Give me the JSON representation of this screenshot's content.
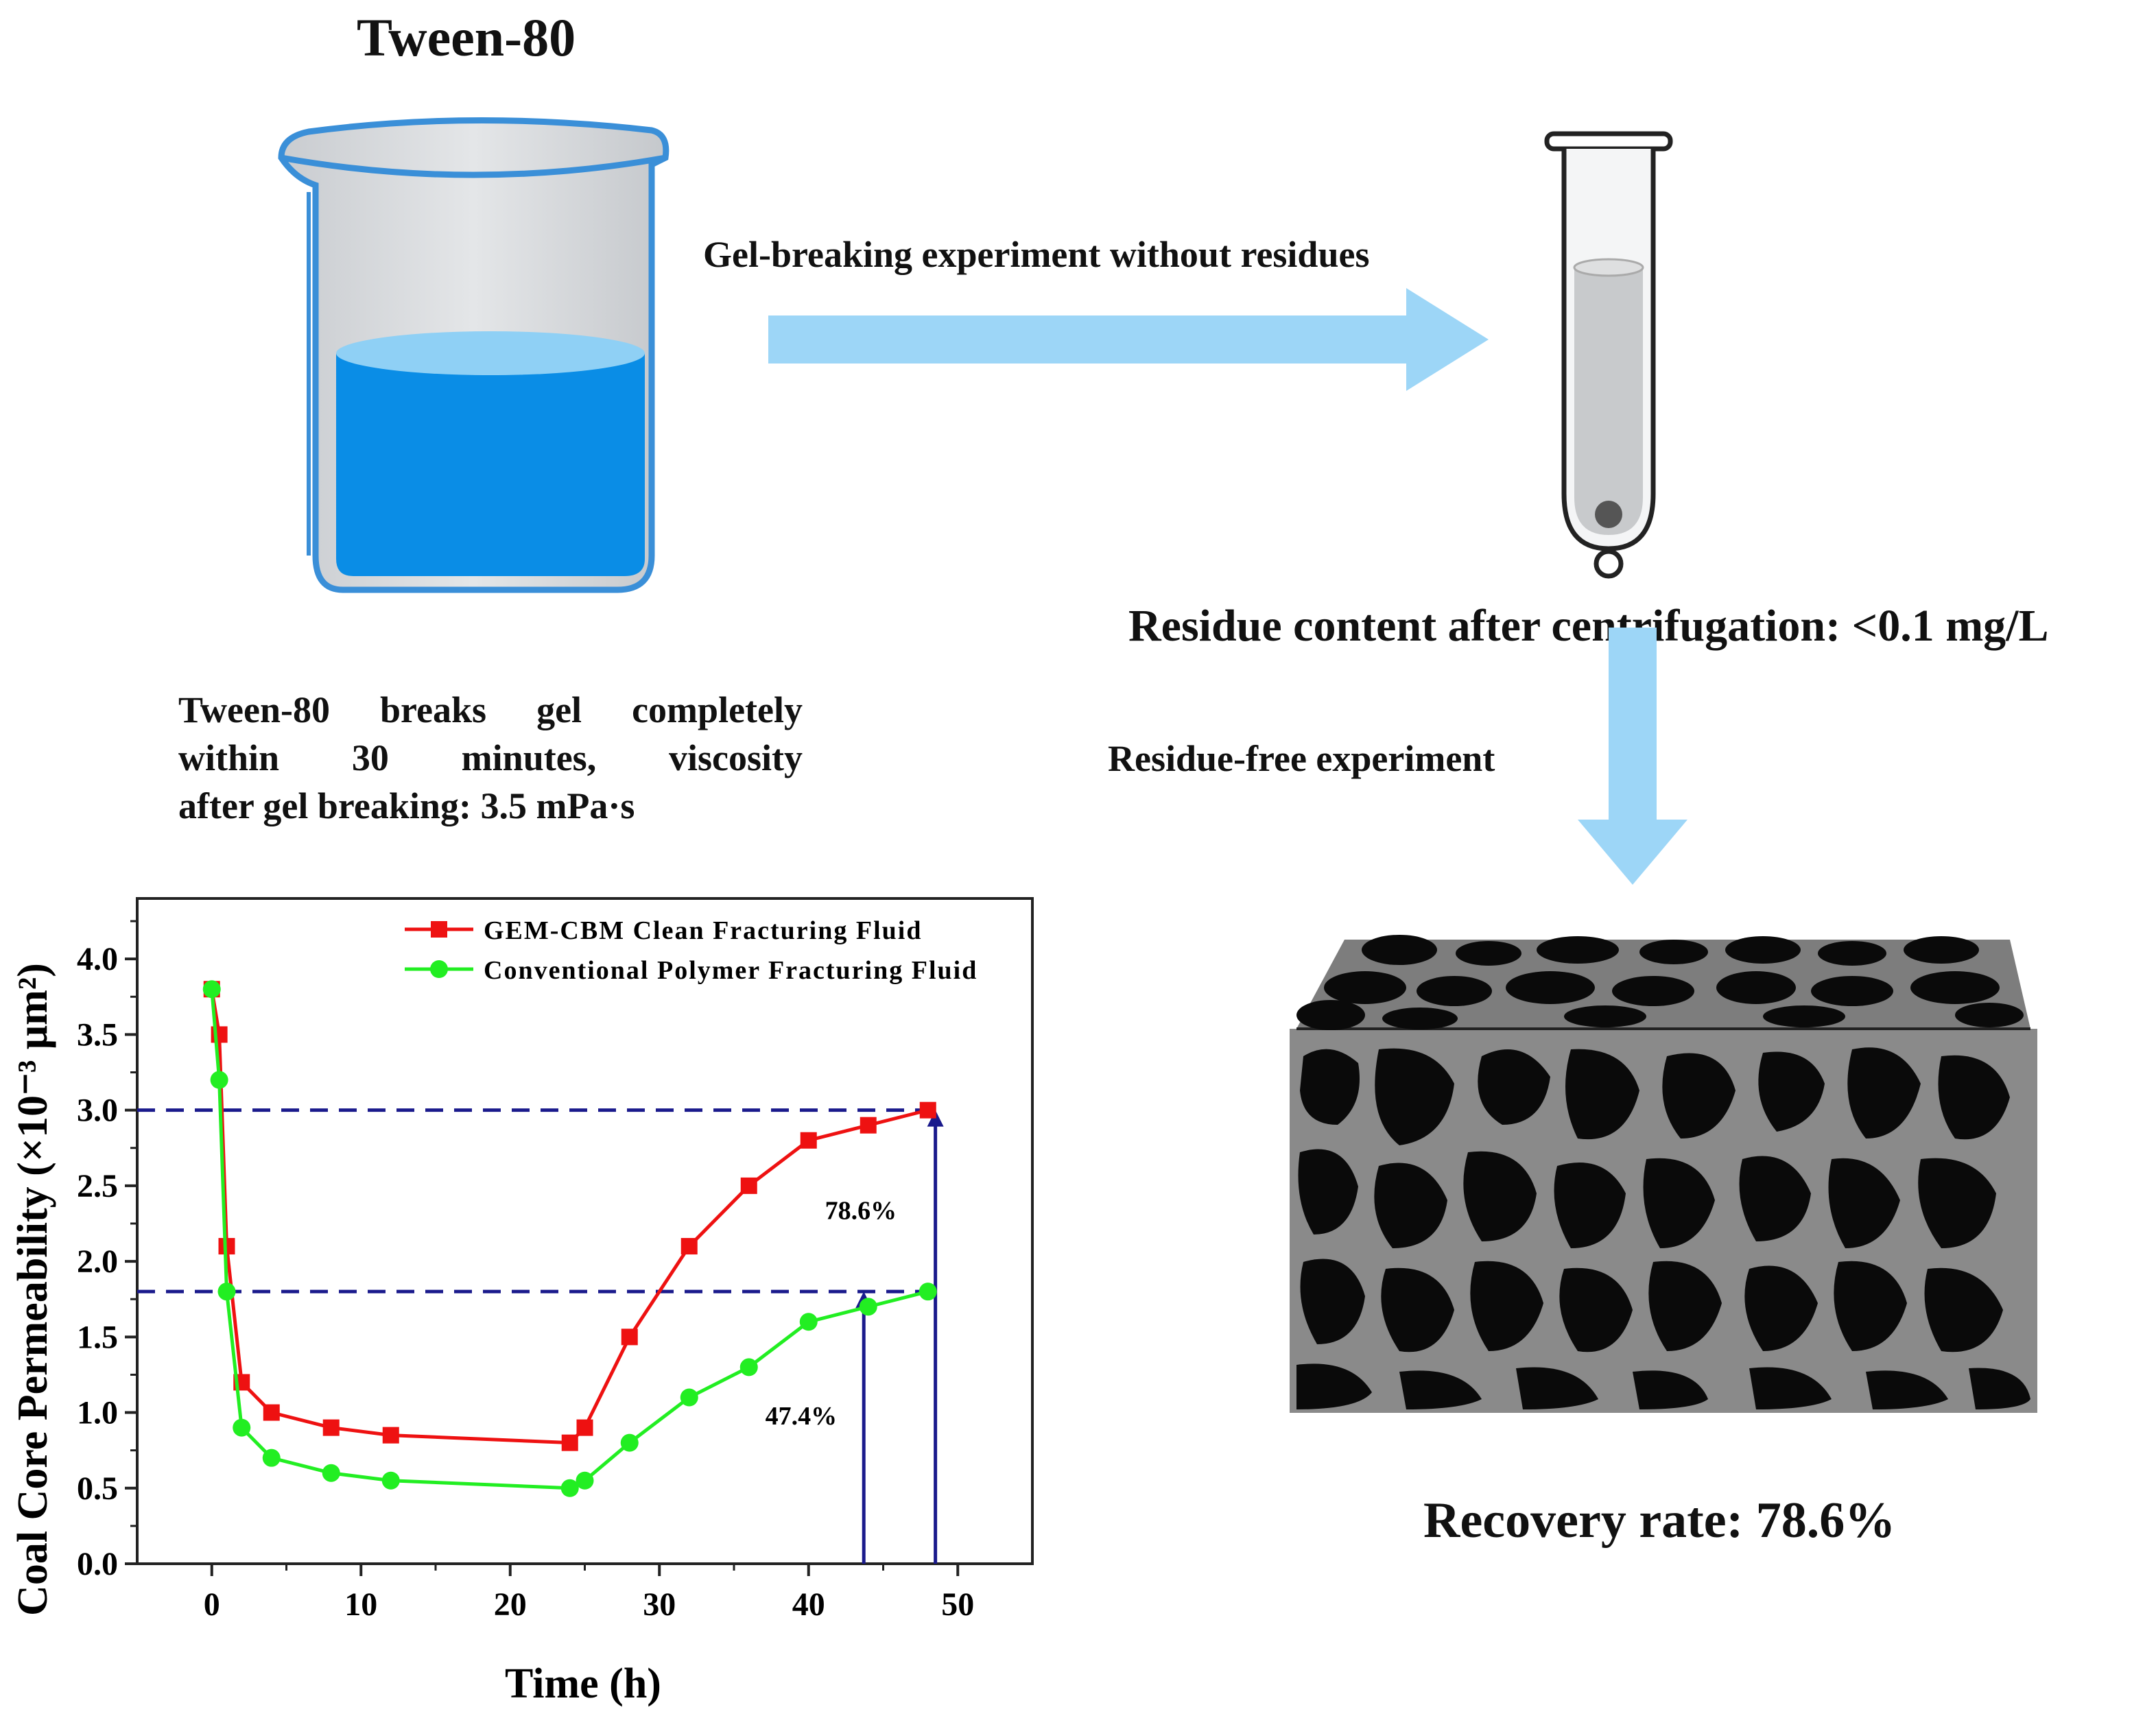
{
  "diagram": {
    "title": "Tween-80",
    "arrow_right_label": "Gel-breaking experiment without residues",
    "residue_text": "Residue content after centrifugation: <0.1 mg/L",
    "arrow_down_label": "Residue-free experiment",
    "tween_desc_lines": [
      "Tween-80 breaks gel completely",
      "within 30 minutes, viscosity",
      "after gel breaking: 3.5 mPa·s"
    ],
    "recovery_text": "Recovery rate: 78.6%",
    "colors": {
      "arrow": "#9dd6f7",
      "beaker_outline": "#3a8fd8",
      "beaker_liquid": "#0a8de6",
      "beaker_liquid_top": "#8fd0f5",
      "coal_dark": "#0a0a0a",
      "coal_matrix": "#8a8a8a"
    }
  },
  "chart_data": {
    "type": "line",
    "xlabel": "Time (h)",
    "ylabel": "Coal Core Permeability (×10⁻³ μm²)",
    "xlim": [
      -5,
      55
    ],
    "ylim": [
      0,
      4.4
    ],
    "xticks": [
      "0",
      "10",
      "20",
      "30",
      "40",
      "50"
    ],
    "yticks": [
      "0.0",
      "0.5",
      "1.0",
      "1.5",
      "2.0",
      "2.5",
      "3.0",
      "3.5",
      "4.0"
    ],
    "legend_position": "top-right",
    "series": [
      {
        "name": "GEM-CBM Clean Fracturing Fluid",
        "color": "#ee1111",
        "marker": "square",
        "x": [
          0,
          0.5,
          1,
          2,
          4,
          8,
          12,
          24,
          25,
          28,
          32,
          36,
          40,
          44,
          48
        ],
        "y": [
          3.8,
          3.5,
          2.1,
          1.2,
          1.0,
          0.9,
          0.85,
          0.8,
          0.9,
          1.5,
          2.1,
          2.5,
          2.8,
          2.9,
          3.0
        ]
      },
      {
        "name": "Conventional Polymer Fracturing Fluid",
        "color": "#22ee22",
        "marker": "circle",
        "x": [
          0,
          0.5,
          1,
          2,
          4,
          8,
          12,
          24,
          25,
          28,
          32,
          36,
          40,
          44,
          48
        ],
        "y": [
          3.8,
          3.2,
          1.8,
          0.9,
          0.7,
          0.6,
          0.55,
          0.5,
          0.55,
          0.8,
          1.1,
          1.3,
          1.6,
          1.7,
          1.8
        ]
      }
    ],
    "reference_lines_y": [
      3.0,
      1.8
    ],
    "reference_color": "#1a1a8c",
    "annotations": [
      {
        "text": "78.6%",
        "x": 43.5,
        "y": 2.28
      },
      {
        "text": "47.4%",
        "x": 39.5,
        "y": 0.92
      }
    ],
    "arrows": [
      {
        "x": 48.5,
        "y_from": 0,
        "y_to": 3.0
      },
      {
        "x": 43.7,
        "y_from": 0,
        "y_to": 1.8
      }
    ]
  }
}
